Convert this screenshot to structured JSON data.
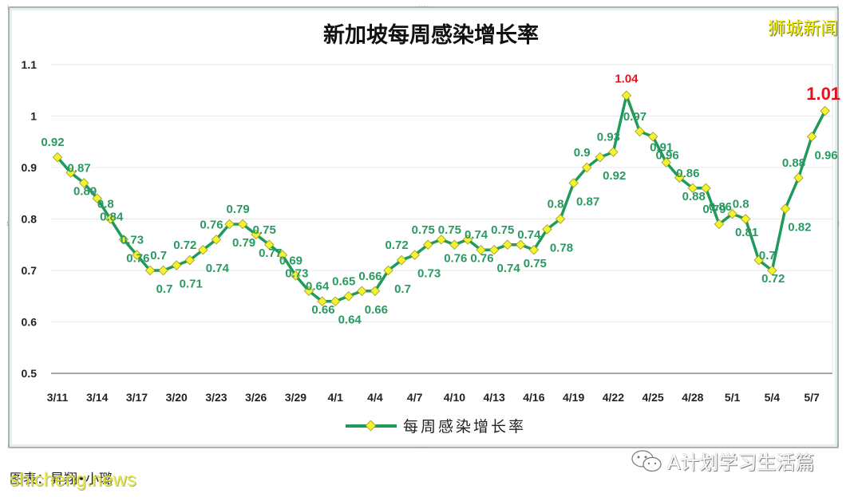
{
  "header": {
    "title": "新加坡每周感染增长率",
    "brand_watermark": "狮城新闻"
  },
  "legend": {
    "label": "每周感染增长率"
  },
  "footer": {
    "source": "图表：昇翔•小璐",
    "site_watermark": "shicheng.news",
    "wechat_account": "A计划学习生活篇"
  },
  "colors": {
    "line": "#1e9a5a",
    "marker_fill": "#f3f22e",
    "label": "#2a9a62",
    "highlight": "#e0141e",
    "grid": "#e8e8e8"
  },
  "chart_data": {
    "type": "line",
    "title": "新加坡每周感染增长率",
    "xlabel": "",
    "ylabel": "",
    "ylim": [
      0.5,
      1.1
    ],
    "yticks": [
      "0.5",
      "0.6",
      "0.7",
      "0.8",
      "0.9",
      "1",
      "1.1"
    ],
    "xticks": [
      "3/11",
      "3/14",
      "3/17",
      "3/20",
      "3/23",
      "3/26",
      "3/29",
      "4/1",
      "4/4",
      "4/7",
      "4/10",
      "4/13",
      "4/16",
      "4/19",
      "4/22",
      "4/25",
      "4/28",
      "5/1",
      "5/4",
      "5/7"
    ],
    "grid": true,
    "legend_position": "bottom",
    "x": [
      "3/11",
      "3/12",
      "3/13",
      "3/14",
      "3/15",
      "3/16",
      "3/17",
      "3/18",
      "3/19",
      "3/20",
      "3/21",
      "3/22",
      "3/23",
      "3/24",
      "3/25",
      "3/26",
      "3/27",
      "3/28",
      "3/29",
      "3/30",
      "3/31",
      "4/1",
      "4/2",
      "4/3",
      "4/4",
      "4/5",
      "4/6",
      "4/7",
      "4/8",
      "4/9",
      "4/10",
      "4/11",
      "4/12",
      "4/13",
      "4/14",
      "4/15",
      "4/16",
      "4/17",
      "4/18",
      "4/19",
      "4/20",
      "4/21",
      "4/22",
      "4/23",
      "4/24",
      "4/25",
      "4/26",
      "4/27",
      "4/28",
      "4/29",
      "4/30",
      "5/1",
      "5/2",
      "5/3",
      "5/4",
      "5/5",
      "5/6",
      "5/7",
      "5/8"
    ],
    "series": [
      {
        "name": "每周感染增长率",
        "values": [
          0.92,
          0.89,
          0.87,
          0.84,
          0.8,
          0.76,
          0.73,
          0.7,
          0.7,
          0.71,
          0.72,
          0.74,
          0.76,
          0.79,
          0.79,
          0.77,
          0.75,
          0.73,
          0.69,
          0.66,
          0.64,
          0.64,
          0.65,
          0.66,
          0.66,
          0.7,
          0.72,
          0.73,
          0.75,
          0.76,
          0.75,
          0.76,
          0.74,
          0.74,
          0.75,
          0.75,
          0.74,
          0.78,
          0.8,
          0.87,
          0.9,
          0.92,
          0.93,
          1.04,
          0.97,
          0.96,
          0.91,
          0.88,
          0.86,
          0.86,
          0.79,
          0.81,
          0.8,
          0.72,
          0.7,
          0.82,
          0.88,
          0.96,
          1.01
        ]
      }
    ],
    "highlighted_points": [
      "4/23: 1.04",
      "5/8: 1.01"
    ]
  }
}
